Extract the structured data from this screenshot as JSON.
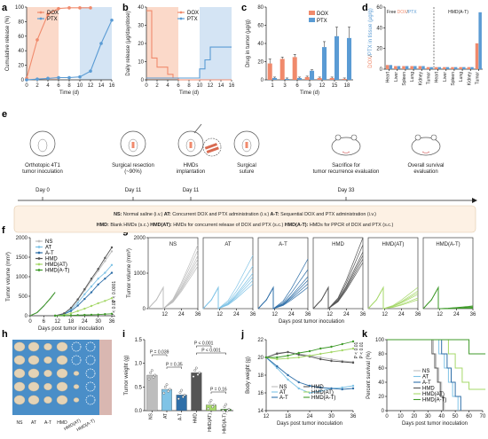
{
  "colors": {
    "dox": "#f08a6c",
    "ptx": "#5a9bd4",
    "dox_shade": "#fbd9c9",
    "ptx_shade": "#d4e4f4",
    "g_ns": "#bdbdbd",
    "g_at": "#7fc3e6",
    "g_a_t": "#2f6fa8",
    "g_hmd": "#555555",
    "g_hmd_at": "#a6d86a",
    "g_hmd_a_t": "#3f9a2a"
  },
  "panel_labels": {
    "a": "a",
    "b": "b",
    "c": "c",
    "d": "d",
    "e": "e",
    "f": "f",
    "g": "g",
    "h": "h",
    "i": "i",
    "j": "j",
    "k": "k"
  },
  "panel_a": {
    "ylabel": "Cumulative release (%)",
    "xlabel": "Time (d)",
    "legend": [
      "DOX",
      "PTX"
    ],
    "xticks": [
      "0",
      "2",
      "4",
      "6",
      "8",
      "10",
      "12",
      "14",
      "16"
    ],
    "yticks": [
      "0",
      "20",
      "40",
      "60",
      "80",
      "100"
    ]
  },
  "panel_b": {
    "ylabel": "Daily release (µg/day/dose)",
    "xlabel": "Time (d)",
    "legend": [
      "DOX",
      "PTX"
    ],
    "xticks": [
      "0",
      "2",
      "4",
      "6",
      "8",
      "10",
      "12",
      "14",
      "16"
    ],
    "yticks": [
      "0",
      "10",
      "20",
      "30",
      "40"
    ]
  },
  "panel_c": {
    "ylabel": "Drug in tumor (µg/g)",
    "xlabel": "Time (d)",
    "legend": [
      "DOX",
      "PTX"
    ],
    "xticks": [
      "1",
      "3",
      "6",
      "9",
      "12",
      "15",
      "18"
    ],
    "yticks": [
      "0",
      "20",
      "40",
      "60",
      "80"
    ]
  },
  "panel_d": {
    "ylabel": "DOX/PTX in tissue (µg/g)",
    "left_title": "Free DOX/PTX",
    "right_title": "HMD(A-T)",
    "xticks": [
      "Heart",
      "Liver",
      "Spleen",
      "Lung",
      "Kidney",
      "Tumor",
      "Heart",
      "Liver",
      "Spleen",
      "Lung",
      "Kidney",
      "Tumor"
    ],
    "yticks": [
      "0",
      "20",
      "40",
      "60"
    ]
  },
  "panel_e": {
    "steps": [
      {
        "caption": "Orthotopic 4T1\ntumor inoculation",
        "day": "Day 0"
      },
      {
        "caption": "Surgical resection\n(~90%)",
        "day": "Day 11"
      },
      {
        "caption": "HMDs\nimplantation",
        "day": "Day 11"
      },
      {
        "caption": "Surgical\nsuture",
        "day": ""
      },
      {
        "caption": "Sacrifice for\ntumor recurrence evaluation",
        "day": "Day 33"
      },
      {
        "caption": "Overall survival\nevaluation",
        "day": ""
      }
    ],
    "legend_line1": [
      [
        "NS:",
        "Normal saline (i.v.)"
      ],
      [
        "AT:",
        "Concurrent DOX and PTX administration (i.v.)"
      ],
      [
        "A-T:",
        "Sequential DOX and PTX administration (i.v.)"
      ]
    ],
    "legend_line2": [
      [
        "HMD:",
        "Blank HMDs (s.c.)"
      ],
      [
        "HMD(AT):",
        "HMDs for concurrent release of DOX and PTX (s.c.)"
      ],
      [
        "HMD(A-T):",
        "HMDs for PPCR of DOX and PTX (s.c.)"
      ]
    ]
  },
  "panel_f": {
    "ylabel": "Tumor volume (mm³)",
    "xlabel": "Days post tumor inoculation",
    "legend": [
      "NS",
      "AT",
      "A-T",
      "HMD",
      "HMD(AT)",
      "HMD(A-T)"
    ],
    "xticks": [
      "0",
      "6",
      "12",
      "18",
      "24",
      "30",
      "36"
    ],
    "yticks": [
      "0",
      "500",
      "1000",
      "1500",
      "2000"
    ],
    "pvals": [
      "P < 0.0001",
      "P < 0.01"
    ]
  },
  "panel_g": {
    "ylabel": "Tumor volume (mm³)",
    "xlabel": "Days post tumor inoculation",
    "titles": [
      "NS",
      "AT",
      "A-T",
      "HMD",
      "HMD(AT)",
      "HMD(A-T)"
    ],
    "xticks": [
      "12",
      "24",
      "36"
    ],
    "yticks": [
      "0",
      "1000",
      "2000"
    ]
  },
  "panel_h": {
    "labels": [
      "NS",
      "AT",
      "A-T",
      "HMD",
      "HMD(AT)",
      "HMD(A-T)"
    ]
  },
  "panel_i": {
    "ylabel": "Tumor weight (g)",
    "xticks": [
      "NS",
      "AT",
      "A-T",
      "HMD",
      "HMD(AT)",
      "HMD(A-T)"
    ],
    "yticks": [
      "0.0",
      "0.5",
      "1.0",
      "1.5"
    ],
    "pvals": [
      "P = 0.039",
      "P = 0.35",
      "P < 0.001",
      "P < 0.001",
      "P = 0.16"
    ]
  },
  "panel_j": {
    "ylabel": "Body weight (g)",
    "xlabel": "Days post tumor inoculation",
    "legend": [
      "NS",
      "AT",
      "A-T",
      "HMD",
      "HMD(AT)",
      "HMD(A-T)"
    ],
    "xticks": [
      "12",
      "18",
      "24",
      "30",
      "36"
    ],
    "yticks": [
      "14",
      "16",
      "18",
      "20",
      "22"
    ],
    "pvals": [
      "P < 0.01",
      "P < 0.01"
    ]
  },
  "panel_k": {
    "ylabel": "Percent survival (%)",
    "xlabel": "Days post tumor inoculation",
    "legend": [
      "NS",
      "AT",
      "A-T",
      "HMD",
      "HMD(AT)",
      "HMD(A-T)"
    ],
    "xticks": [
      "0",
      "10",
      "20",
      "30",
      "40",
      "50",
      "60",
      "70"
    ],
    "yticks": [
      "0",
      "20",
      "40",
      "60",
      "80",
      "100"
    ]
  },
  "chart_data": [
    {
      "panel": "a",
      "type": "line",
      "xlabel": "Time (d)",
      "ylabel": "Cumulative release (%)",
      "ylim": [
        0,
        100
      ],
      "series": [
        {
          "name": "DOX",
          "x": [
            0,
            2,
            4,
            6,
            8,
            10,
            12
          ],
          "y": [
            2,
            55,
            90,
            98,
            99,
            99,
            99
          ]
        },
        {
          "name": "PTX",
          "x": [
            0,
            2,
            4,
            6,
            8,
            10,
            12,
            14,
            16
          ],
          "y": [
            0,
            1,
            2,
            3,
            3,
            4,
            12,
            50,
            82
          ]
        }
      ]
    },
    {
      "panel": "b",
      "type": "line",
      "xlabel": "Time (d)",
      "ylabel": "Daily release (µg/day/dose)",
      "ylim": [
        0,
        40
      ],
      "series": [
        {
          "name": "DOX",
          "x": [
            0,
            1,
            1,
            2,
            2,
            4,
            4,
            5,
            5,
            6,
            6,
            16
          ],
          "y": [
            38,
            38,
            12,
            12,
            7,
            7,
            3,
            3,
            1,
            1,
            0,
            0
          ]
        },
        {
          "name": "PTX",
          "x": [
            0,
            10,
            10,
            11,
            11,
            12,
            12,
            16
          ],
          "y": [
            1,
            1,
            6,
            6,
            11,
            11,
            18,
            18
          ]
        }
      ]
    },
    {
      "panel": "c",
      "type": "bar",
      "xlabel": "Time (d)",
      "ylabel": "Drug in tumor (µg/g)",
      "ylim": [
        0,
        80
      ],
      "categories": [
        "1",
        "3",
        "6",
        "9",
        "12",
        "15",
        "18"
      ],
      "series": [
        {
          "name": "DOX",
          "values": [
            18,
            23,
            25,
            3,
            2,
            2,
            1
          ]
        },
        {
          "name": "PTX",
          "values": [
            2,
            1,
            2,
            10,
            36,
            48,
            46
          ]
        }
      ]
    },
    {
      "panel": "d",
      "type": "bar",
      "ylabel": "DOX/PTX in tissue (µg/g)",
      "ylim": [
        0,
        60
      ],
      "categories": [
        "Heart",
        "Liver",
        "Spleen",
        "Lung",
        "Kidney",
        "Tumor",
        "Heart",
        "Liver",
        "Spleen",
        "Lung",
        "Kidney",
        "Tumor"
      ],
      "series": [
        {
          "name": "DOX",
          "values": [
            4,
            3,
            3,
            3,
            3,
            2,
            2,
            2,
            2,
            2,
            2,
            25
          ]
        },
        {
          "name": "PTX",
          "values": [
            4,
            3,
            3,
            3,
            3,
            2,
            2,
            2,
            2,
            2,
            2,
            55
          ]
        }
      ]
    },
    {
      "panel": "f",
      "type": "line",
      "xlabel": "Days post tumor inoculation",
      "ylabel": "Tumor volume (mm³)",
      "ylim": [
        0,
        2000
      ],
      "series": [
        {
          "name": "NS",
          "x": [
            0,
            3,
            6,
            9,
            11,
            11,
            15,
            18,
            21,
            24,
            27,
            30,
            33,
            36
          ],
          "y": [
            0,
            80,
            250,
            450,
            600,
            0,
            60,
            180,
            400,
            650,
            900,
            1150,
            1400,
            1650
          ]
        },
        {
          "name": "AT",
          "x": [
            0,
            3,
            6,
            9,
            11,
            11,
            15,
            18,
            21,
            24,
            27,
            30,
            33,
            36
          ],
          "y": [
            0,
            80,
            250,
            450,
            600,
            0,
            50,
            150,
            330,
            550,
            750,
            950,
            1100,
            1300
          ]
        },
        {
          "name": "A-T",
          "x": [
            0,
            3,
            6,
            9,
            11,
            11,
            15,
            18,
            21,
            24,
            27,
            30,
            33,
            36
          ],
          "y": [
            0,
            80,
            250,
            450,
            600,
            0,
            40,
            120,
            260,
            430,
            600,
            800,
            950,
            1100
          ]
        },
        {
          "name": "HMD",
          "x": [
            0,
            3,
            6,
            9,
            11,
            11,
            15,
            18,
            21,
            24,
            27,
            30,
            33,
            36
          ],
          "y": [
            0,
            80,
            250,
            450,
            600,
            0,
            60,
            200,
            420,
            680,
            950,
            1200,
            1480,
            1750
          ]
        },
        {
          "name": "HMD(AT)",
          "x": [
            0,
            3,
            6,
            9,
            11,
            11,
            15,
            18,
            21,
            24,
            27,
            30,
            33,
            36
          ],
          "y": [
            0,
            80,
            250,
            450,
            600,
            0,
            20,
            60,
            120,
            180,
            250,
            320,
            380,
            450
          ]
        },
        {
          "name": "HMD(A-T)",
          "x": [
            0,
            3,
            6,
            9,
            11,
            11,
            15,
            18,
            21,
            24,
            27,
            30,
            33,
            36
          ],
          "y": [
            0,
            80,
            250,
            450,
            600,
            0,
            5,
            10,
            15,
            20,
            25,
            30,
            40,
            50
          ]
        }
      ]
    },
    {
      "panel": "i",
      "type": "bar",
      "ylabel": "Tumor weight (g)",
      "ylim": [
        0,
        1.5
      ],
      "categories": [
        "NS",
        "AT",
        "A-T",
        "HMD",
        "HMD(AT)",
        "HMD(A-T)"
      ],
      "values": [
        0.75,
        0.45,
        0.33,
        0.8,
        0.12,
        0.03
      ]
    },
    {
      "panel": "j",
      "type": "line",
      "xlabel": "Days post tumor inoculation",
      "ylabel": "Body weight (g)",
      "ylim": [
        14,
        22
      ],
      "series": [
        {
          "name": "NS",
          "x": [
            12,
            15,
            18,
            21,
            24,
            27,
            30,
            33,
            36
          ],
          "y": [
            20,
            20.5,
            20.6,
            20.4,
            20.2,
            20,
            19.8,
            19.6,
            19.5
          ]
        },
        {
          "name": "AT",
          "x": [
            12,
            15,
            18,
            21,
            24,
            27,
            30,
            33,
            36
          ],
          "y": [
            20,
            18.8,
            17.5,
            16.5,
            16,
            16.2,
            16.5,
            16.6,
            16.8
          ]
        },
        {
          "name": "A-T",
          "x": [
            12,
            15,
            18,
            21,
            24,
            27,
            30,
            33,
            36
          ],
          "y": [
            20,
            19,
            18,
            17.2,
            16.8,
            16.6,
            16.5,
            16.4,
            16.5
          ]
        },
        {
          "name": "HMD",
          "x": [
            12,
            15,
            18,
            21,
            24,
            27,
            30,
            33,
            36
          ],
          "y": [
            20,
            20.4,
            20.6,
            20.3,
            20.1,
            19.8,
            19.6,
            19.5,
            19.4
          ]
        },
        {
          "name": "HMD(AT)",
          "x": [
            12,
            15,
            18,
            21,
            24,
            27,
            30,
            33,
            36
          ],
          "y": [
            20,
            19.8,
            19.9,
            20,
            20.2,
            20.4,
            20.6,
            20.8,
            21
          ]
        },
        {
          "name": "HMD(A-T)",
          "x": [
            12,
            15,
            18,
            21,
            24,
            27,
            30,
            33,
            36
          ],
          "y": [
            20,
            20,
            20.2,
            20.5,
            20.7,
            21,
            21.2,
            21.5,
            21.8
          ]
        }
      ]
    },
    {
      "panel": "k",
      "type": "line",
      "xlabel": "Days post tumor inoculation",
      "ylabel": "Percent survival (%)",
      "ylim": [
        0,
        100
      ],
      "series": [
        {
          "name": "NS",
          "x": [
            0,
            34,
            34,
            36,
            36,
            38,
            38,
            40,
            40,
            42,
            42
          ],
          "y": [
            100,
            100,
            80,
            80,
            60,
            60,
            40,
            40,
            20,
            20,
            0
          ]
        },
        {
          "name": "AT",
          "x": [
            0,
            38,
            38,
            42,
            42,
            45,
            45,
            48,
            48,
            52,
            52
          ],
          "y": [
            100,
            100,
            80,
            80,
            60,
            60,
            40,
            40,
            20,
            20,
            0
          ]
        },
        {
          "name": "A-T",
          "x": [
            0,
            40,
            40,
            44,
            44,
            47,
            47,
            50,
            50,
            54,
            54
          ],
          "y": [
            100,
            100,
            80,
            80,
            60,
            60,
            40,
            40,
            20,
            20,
            0
          ]
        },
        {
          "name": "HMD",
          "x": [
            0,
            33,
            33,
            35,
            35,
            37,
            37,
            39,
            39,
            41,
            41
          ],
          "y": [
            100,
            100,
            80,
            80,
            60,
            60,
            40,
            40,
            20,
            20,
            0
          ]
        },
        {
          "name": "HMD(AT)",
          "x": [
            0,
            45,
            45,
            50,
            50,
            55,
            55,
            60,
            60,
            72
          ],
          "y": [
            100,
            100,
            80,
            80,
            60,
            60,
            40,
            40,
            30,
            30
          ]
        },
        {
          "name": "HMD(A-T)",
          "x": [
            0,
            60,
            60,
            72
          ],
          "y": [
            100,
            100,
            80,
            80
          ]
        }
      ]
    }
  ]
}
